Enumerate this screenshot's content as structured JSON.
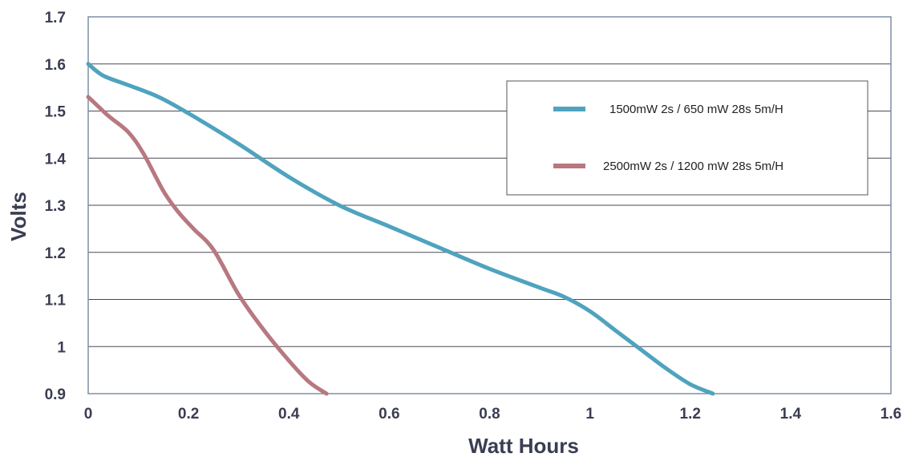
{
  "chart_data": {
    "type": "line",
    "title": "",
    "xlabel": "Watt Hours",
    "ylabel": "Volts",
    "xlim": [
      0,
      1.6
    ],
    "ylim": [
      0.9,
      1.7
    ],
    "x_ticks": [
      "0",
      "0.2",
      "0.4",
      "0.6",
      "0.8",
      "1",
      "1.2",
      "1.4",
      "1.6"
    ],
    "y_ticks": [
      "0.9",
      "1",
      "1.1",
      "1.2",
      "1.3",
      "1.4",
      "1.5",
      "1.6",
      "1.7"
    ],
    "grid": true,
    "legend_position": "top-right",
    "series": [
      {
        "name": "1500mW 2s / 650 mW 28s 5m/H",
        "color": "#4fa3be",
        "points": [
          [
            0,
            1.6
          ],
          [
            0.03,
            1.575
          ],
          [
            0.08,
            1.555
          ],
          [
            0.14,
            1.53
          ],
          [
            0.2,
            1.495
          ],
          [
            0.3,
            1.43
          ],
          [
            0.4,
            1.36
          ],
          [
            0.5,
            1.3
          ],
          [
            0.6,
            1.255
          ],
          [
            0.7,
            1.21
          ],
          [
            0.8,
            1.165
          ],
          [
            0.9,
            1.125
          ],
          [
            0.95,
            1.105
          ],
          [
            1.0,
            1.075
          ],
          [
            1.05,
            1.035
          ],
          [
            1.1,
            0.995
          ],
          [
            1.15,
            0.955
          ],
          [
            1.2,
            0.92
          ],
          [
            1.245,
            0.9
          ]
        ]
      },
      {
        "name": "2500mW 2s / 1200 mW 28s 5m/H",
        "color": "#b87880",
        "points": [
          [
            0,
            1.53
          ],
          [
            0.04,
            1.49
          ],
          [
            0.08,
            1.455
          ],
          [
            0.11,
            1.41
          ],
          [
            0.15,
            1.33
          ],
          [
            0.18,
            1.285
          ],
          [
            0.21,
            1.25
          ],
          [
            0.25,
            1.205
          ],
          [
            0.3,
            1.11
          ],
          [
            0.35,
            1.035
          ],
          [
            0.4,
            0.97
          ],
          [
            0.44,
            0.925
          ],
          [
            0.475,
            0.9
          ]
        ]
      }
    ]
  }
}
